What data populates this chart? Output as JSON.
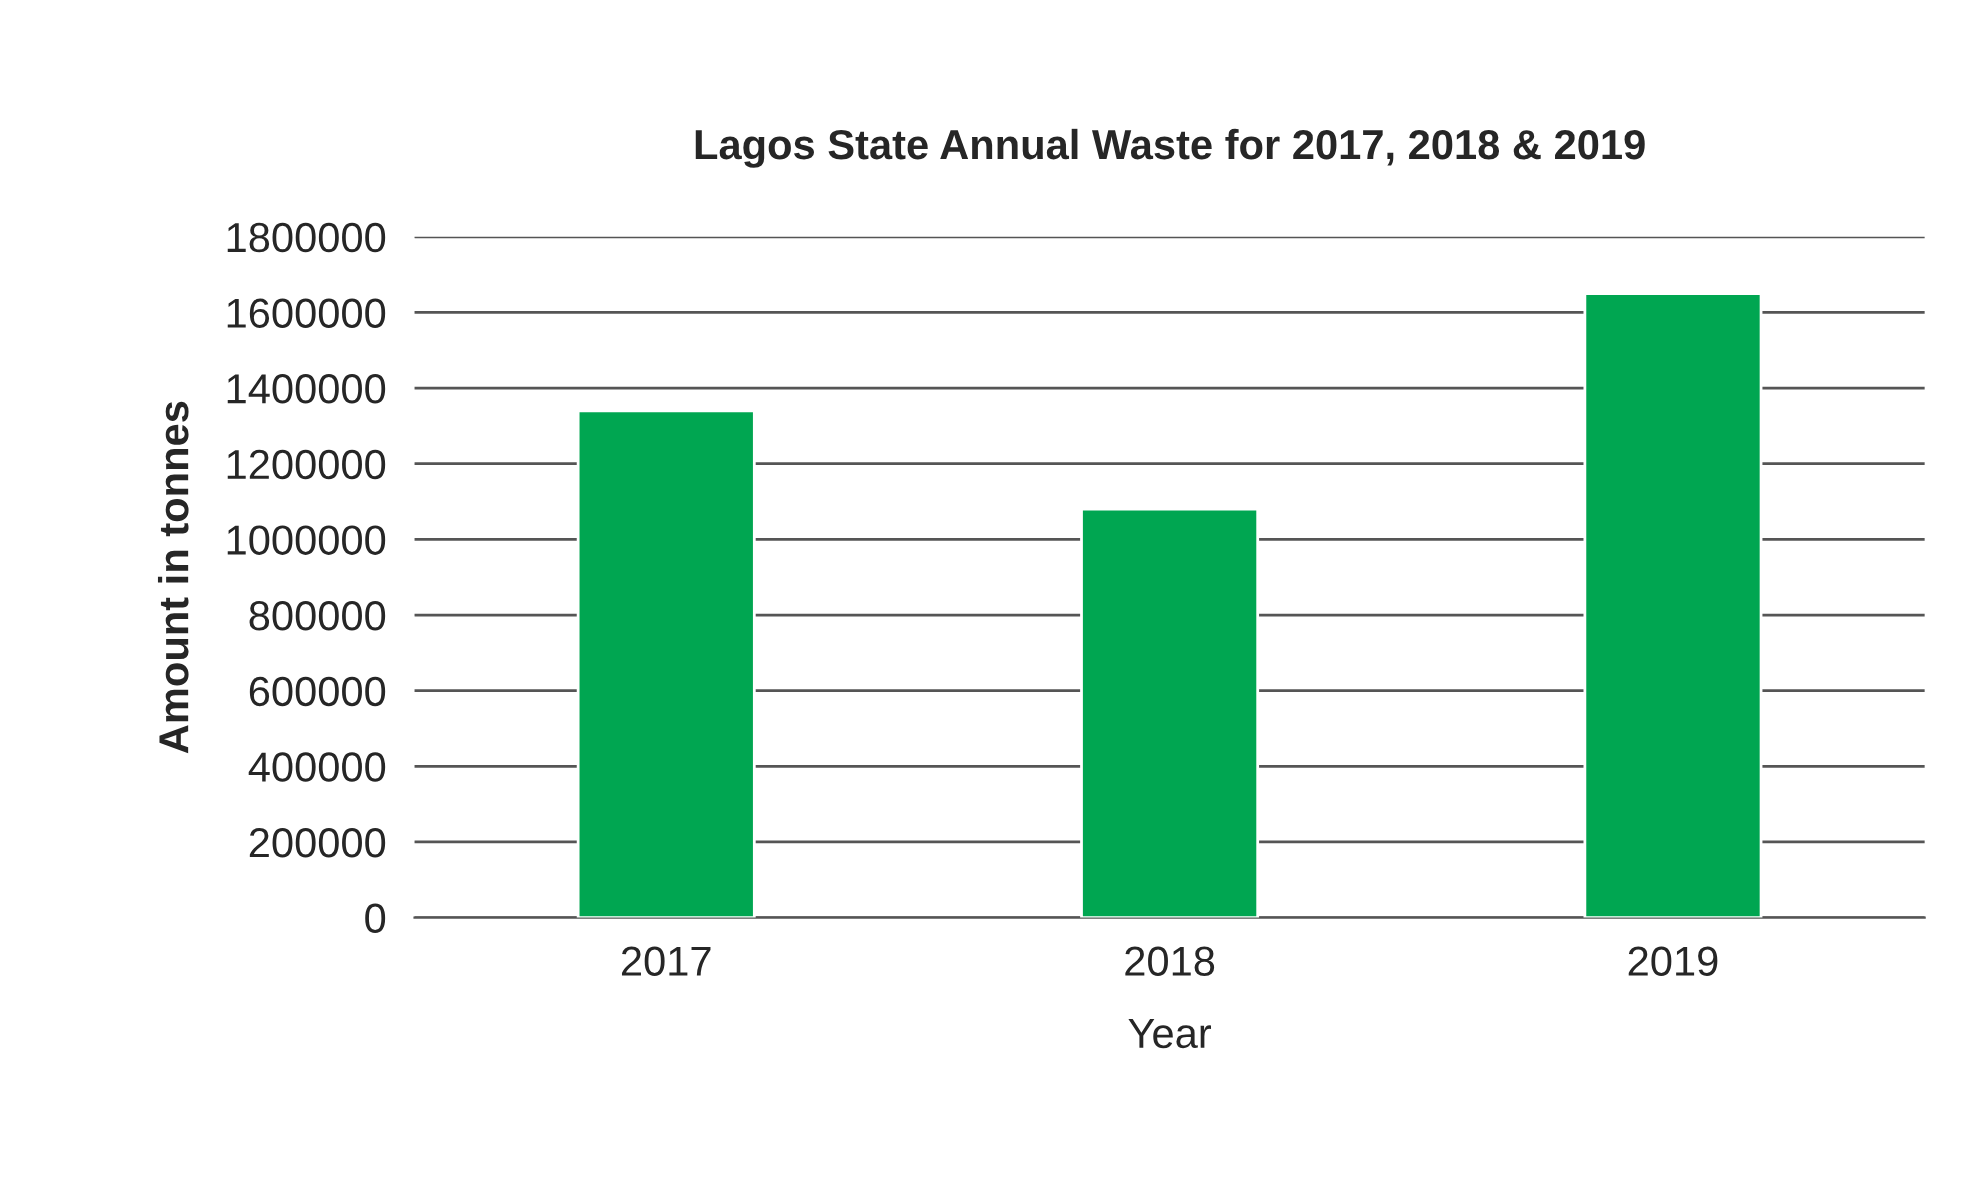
{
  "chart_data": {
    "type": "bar",
    "title": "Lagos State Annual Waste for 2017, 2018 & 2019",
    "xlabel": "Year",
    "ylabel": "Amount in tonnes",
    "categories": [
      "2017",
      "2018",
      "2019"
    ],
    "values": [
      1340000,
      1080000,
      1650000
    ],
    "color": "#00a651",
    "ylim": [
      0,
      1800000
    ],
    "yticks": [
      0,
      200000,
      400000,
      600000,
      800000,
      1000000,
      1200000,
      1400000,
      1600000,
      1800000
    ],
    "grid": "y"
  }
}
